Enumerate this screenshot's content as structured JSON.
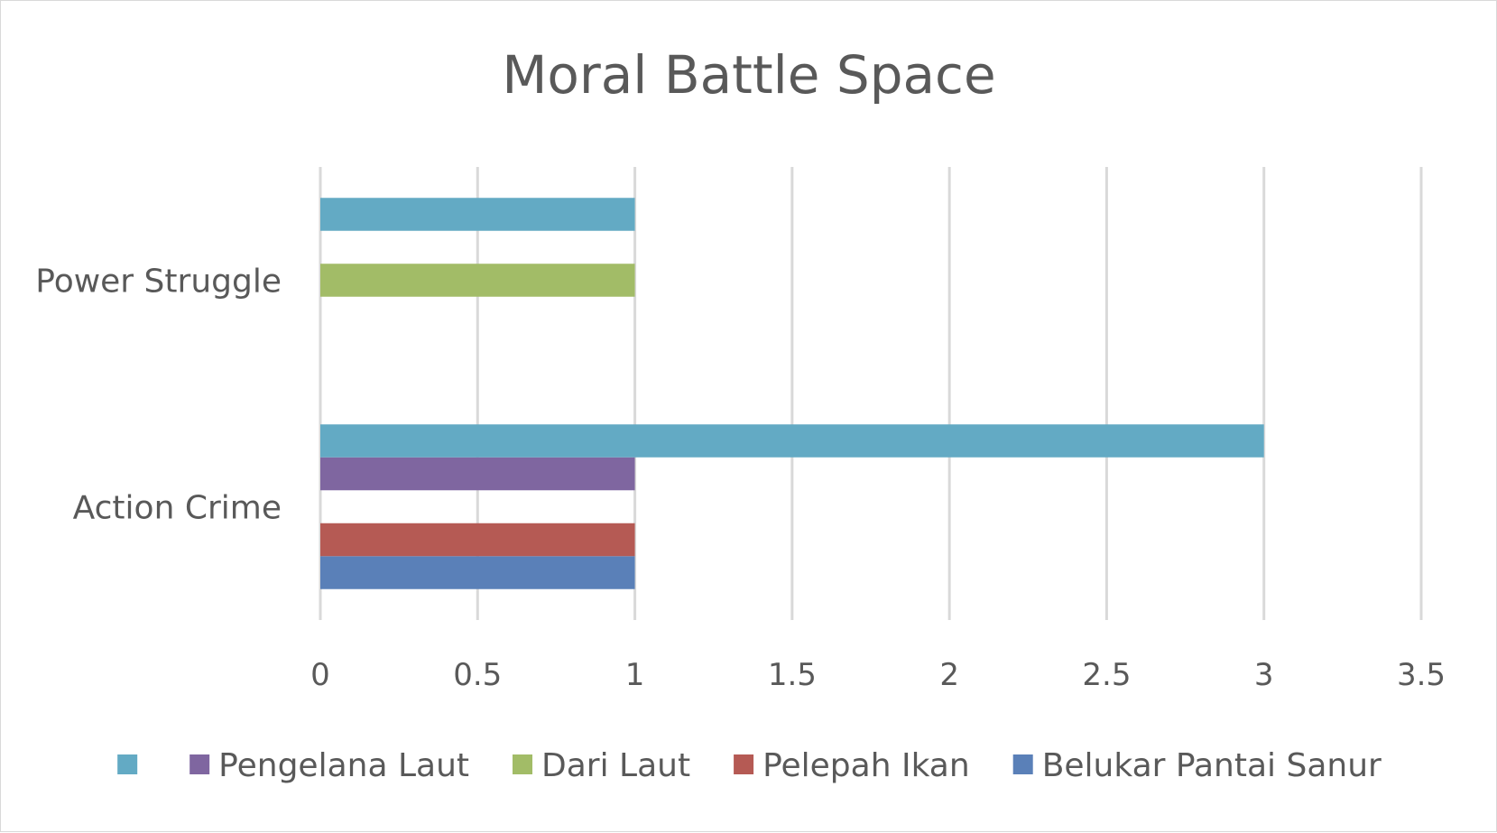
{
  "chart_data": {
    "type": "bar",
    "orientation": "horizontal",
    "title": "Moral Battle Space",
    "xlabel": "",
    "ylabel": "",
    "xlim": [
      0,
      3.5
    ],
    "xticks": [
      "0",
      "0.5",
      "1",
      "1.5",
      "2",
      "2.5",
      "3",
      "3.5"
    ],
    "grid": true,
    "legend_position": "bottom",
    "categories": [
      "Action Crime",
      "Power Struggle"
    ],
    "series": [
      {
        "name": "Belukar Pantai Sanur",
        "color": "#5A80B8",
        "values": [
          1,
          null
        ]
      },
      {
        "name": "Pelepah Ikan",
        "color": "#B55A54",
        "values": [
          1,
          null
        ]
      },
      {
        "name": "Dari Laut",
        "color": "#A2BC67",
        "values": [
          null,
          1
        ]
      },
      {
        "name": "Pengelana Laut",
        "color": "#7F66A0",
        "values": [
          1,
          null
        ]
      },
      {
        "name": "",
        "color": "#63AAC4",
        "values": [
          3,
          1
        ]
      }
    ]
  }
}
